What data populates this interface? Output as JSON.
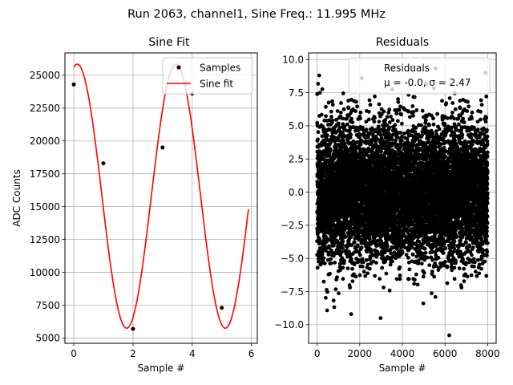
{
  "figure_title": "Run 2063, channel1, Sine Freq.: 11.995 MHz",
  "chart_data": [
    {
      "type": "scatter+line",
      "title": "Sine Fit",
      "xlabel": "Sample #",
      "ylabel": "ADC Counts",
      "xlim": [
        -0.3,
        6.2
      ],
      "ylim": [
        4600,
        26700
      ],
      "xticks": [
        0,
        2,
        4,
        6
      ],
      "yticks": [
        5000,
        7500,
        10000,
        12500,
        15000,
        17500,
        20000,
        22500,
        25000
      ],
      "grid": true,
      "legend_position": "top-right",
      "series": [
        {
          "name": "Samples",
          "kind": "scatter",
          "color": "#000000",
          "points": [
            [
              0,
              24300
            ],
            [
              1,
              18300
            ],
            [
              2,
              5700
            ],
            [
              3,
              19500
            ],
            [
              4,
              23600
            ],
            [
              5,
              7300
            ]
          ]
        },
        {
          "name": "Sine fit",
          "kind": "line",
          "color": "#ff0000",
          "function": {
            "offset": 15800,
            "amplitude": 10050,
            "period_samples": 3.3346,
            "phase_at_x0": 1.349
          },
          "x_range": [
            0,
            5.9
          ]
        }
      ]
    },
    {
      "type": "scatter",
      "title": "Residuals",
      "xlabel": "Sample #",
      "xlim": [
        -400,
        8400
      ],
      "ylim": [
        -11.4,
        10.5
      ],
      "xticks": [
        0,
        2000,
        4000,
        6000,
        8000
      ],
      "yticks": [
        -10.0,
        -7.5,
        -5.0,
        -2.5,
        0.0,
        2.5,
        5.0,
        7.5,
        10.0
      ],
      "grid": true,
      "legend_position": "top-right",
      "series": [
        {
          "name": "Residuals",
          "color": "#000000",
          "count": 8000,
          "mean": -0.0,
          "std": 2.47,
          "notable_points": [
            [
              100,
              8.8
            ],
            [
              2100,
              8.6
            ],
            [
              1600,
              -9.2
            ],
            [
              6200,
              -10.8
            ],
            [
              7900,
              9.0
            ],
            [
              5550,
              -7.9
            ]
          ]
        }
      ],
      "legend_labels": [
        "Residuals",
        "μ = -0.0, σ = 2.47"
      ]
    }
  ]
}
